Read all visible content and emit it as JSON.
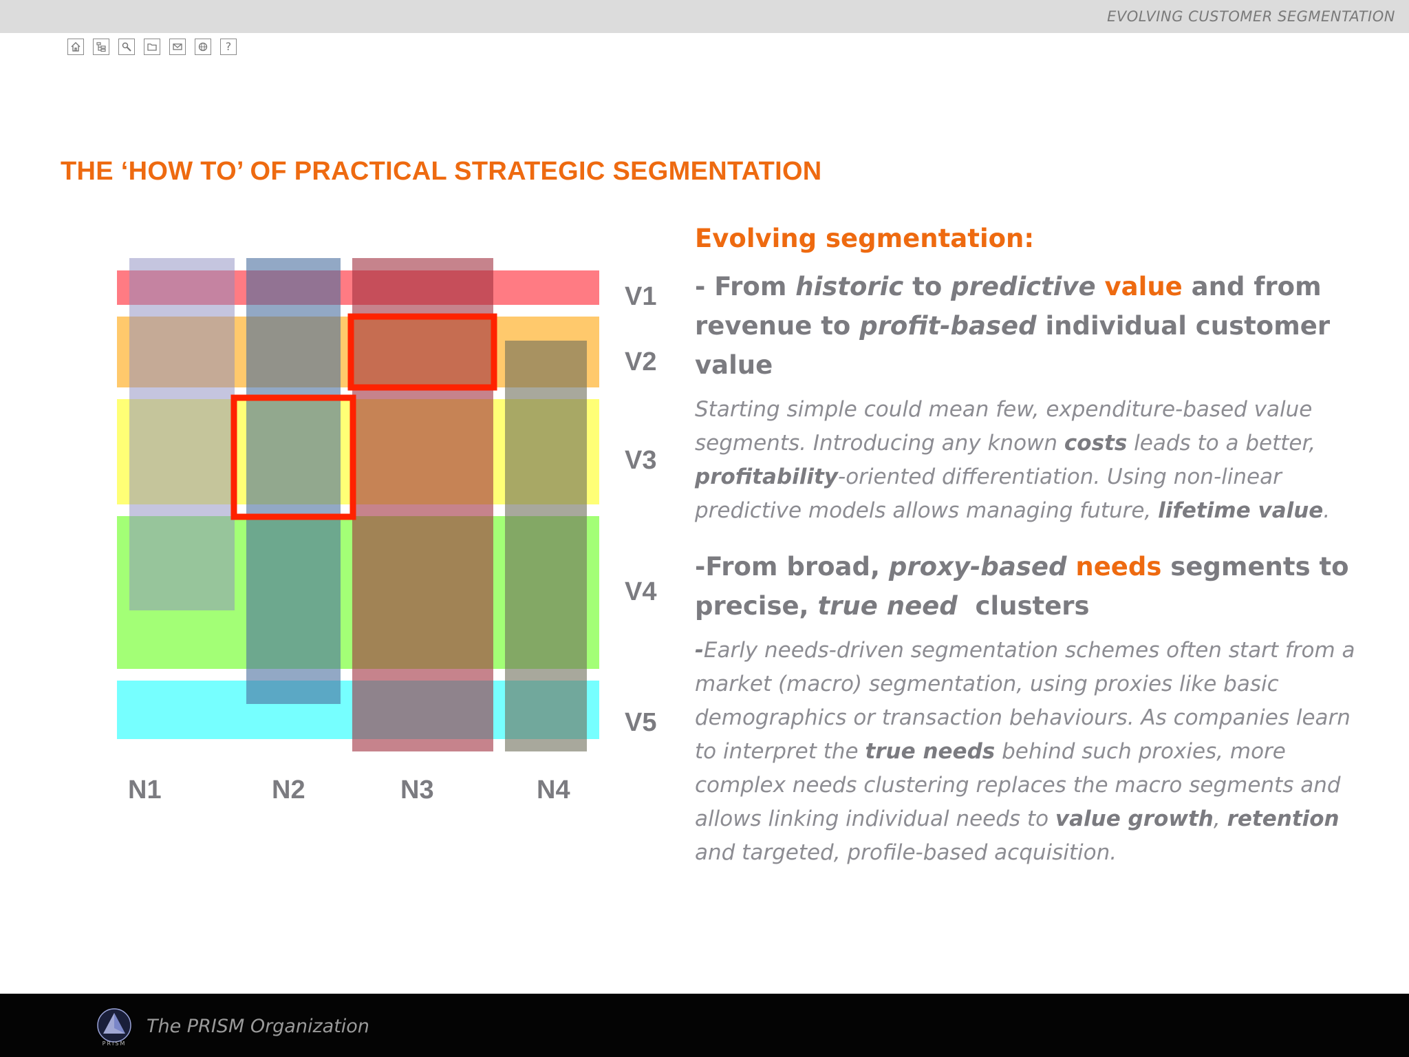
{
  "header": {
    "title": "EVOLVING CUSTOMER SEGMENTATION"
  },
  "toolbar": {
    "items": [
      {
        "name": "home",
        "icon": "home-icon"
      },
      {
        "name": "sitemap",
        "icon": "sitemap-icon"
      },
      {
        "name": "search",
        "icon": "search-icon"
      },
      {
        "name": "folder",
        "icon": "folder-icon"
      },
      {
        "name": "mail",
        "icon": "mail-icon"
      },
      {
        "name": "web",
        "icon": "globe-icon"
      },
      {
        "name": "help",
        "icon": "help-icon",
        "glyph": "?"
      }
    ]
  },
  "heading": "THE ‘HOW TO’ OF PRACTICAL STRATEGIC SEGMENTATION",
  "diagram": {
    "value_rows": [
      {
        "label": "V1",
        "color": "#ff5a64"
      },
      {
        "label": "V2",
        "color": "#ffb22e"
      },
      {
        "label": "V3",
        "color": "#ffff3c"
      },
      {
        "label": "V4",
        "color": "#7cff3c"
      },
      {
        "label": "V5",
        "color": "#3cffff"
      }
    ],
    "need_columns": [
      {
        "label": "N1",
        "color": "#8c8cc0"
      },
      {
        "label": "N2",
        "color": "#4a6e9e"
      },
      {
        "label": "N3",
        "color": "#a03040"
      },
      {
        "label": "N4",
        "color": "#6e6e5a"
      }
    ],
    "highlights": [
      {
        "cell": "N3-V2",
        "color": "#ff2200"
      },
      {
        "cell": "N2-V3",
        "color": "#ff2200"
      }
    ]
  },
  "content": {
    "subtitle": "Evolving segmentation:",
    "bullet1": {
      "p1": " - From ",
      "p2": "historic",
      "p3": " to ",
      "p4": "predictive",
      "p5": " ",
      "p6": "value",
      "p7": " and from revenue to ",
      "p8": "profit-based",
      "p9": " individual customer value"
    },
    "para1": {
      "p1": "Starting simple could mean few, expenditure-based value segments. Introducing any known ",
      "p2": "costs",
      "p3": " leads to a better, ",
      "p4": "profitability",
      "p5": "-oriented differentiation. Using non-linear predictive models allows managing future, ",
      "p6": "lifetime value",
      "p7": "."
    },
    "bullet2": {
      "p1": "-From broad, ",
      "p2": "proxy-based",
      "p3": " ",
      "p4": "needs",
      "p5": " segments to precise, ",
      "p6": "true need",
      "p7": "  clusters"
    },
    "para2": {
      "p1": "-",
      "p2": "Early needs-driven segmentation schemes often start from a market (macro) segmentation, using proxies like basic demographics or transaction behaviours. As companies learn to interpret the ",
      "p3": "true needs",
      "p4": " behind such proxies, more complex needs clustering replaces the macro segments and allows linking individual needs to ",
      "p5": "value growth",
      "p6": ", ",
      "p7": "retention",
      "p8": " and targeted, profile-based acquisition."
    }
  },
  "footer": {
    "organization": "The PRISM Organization",
    "logo_text": "PRISM"
  }
}
